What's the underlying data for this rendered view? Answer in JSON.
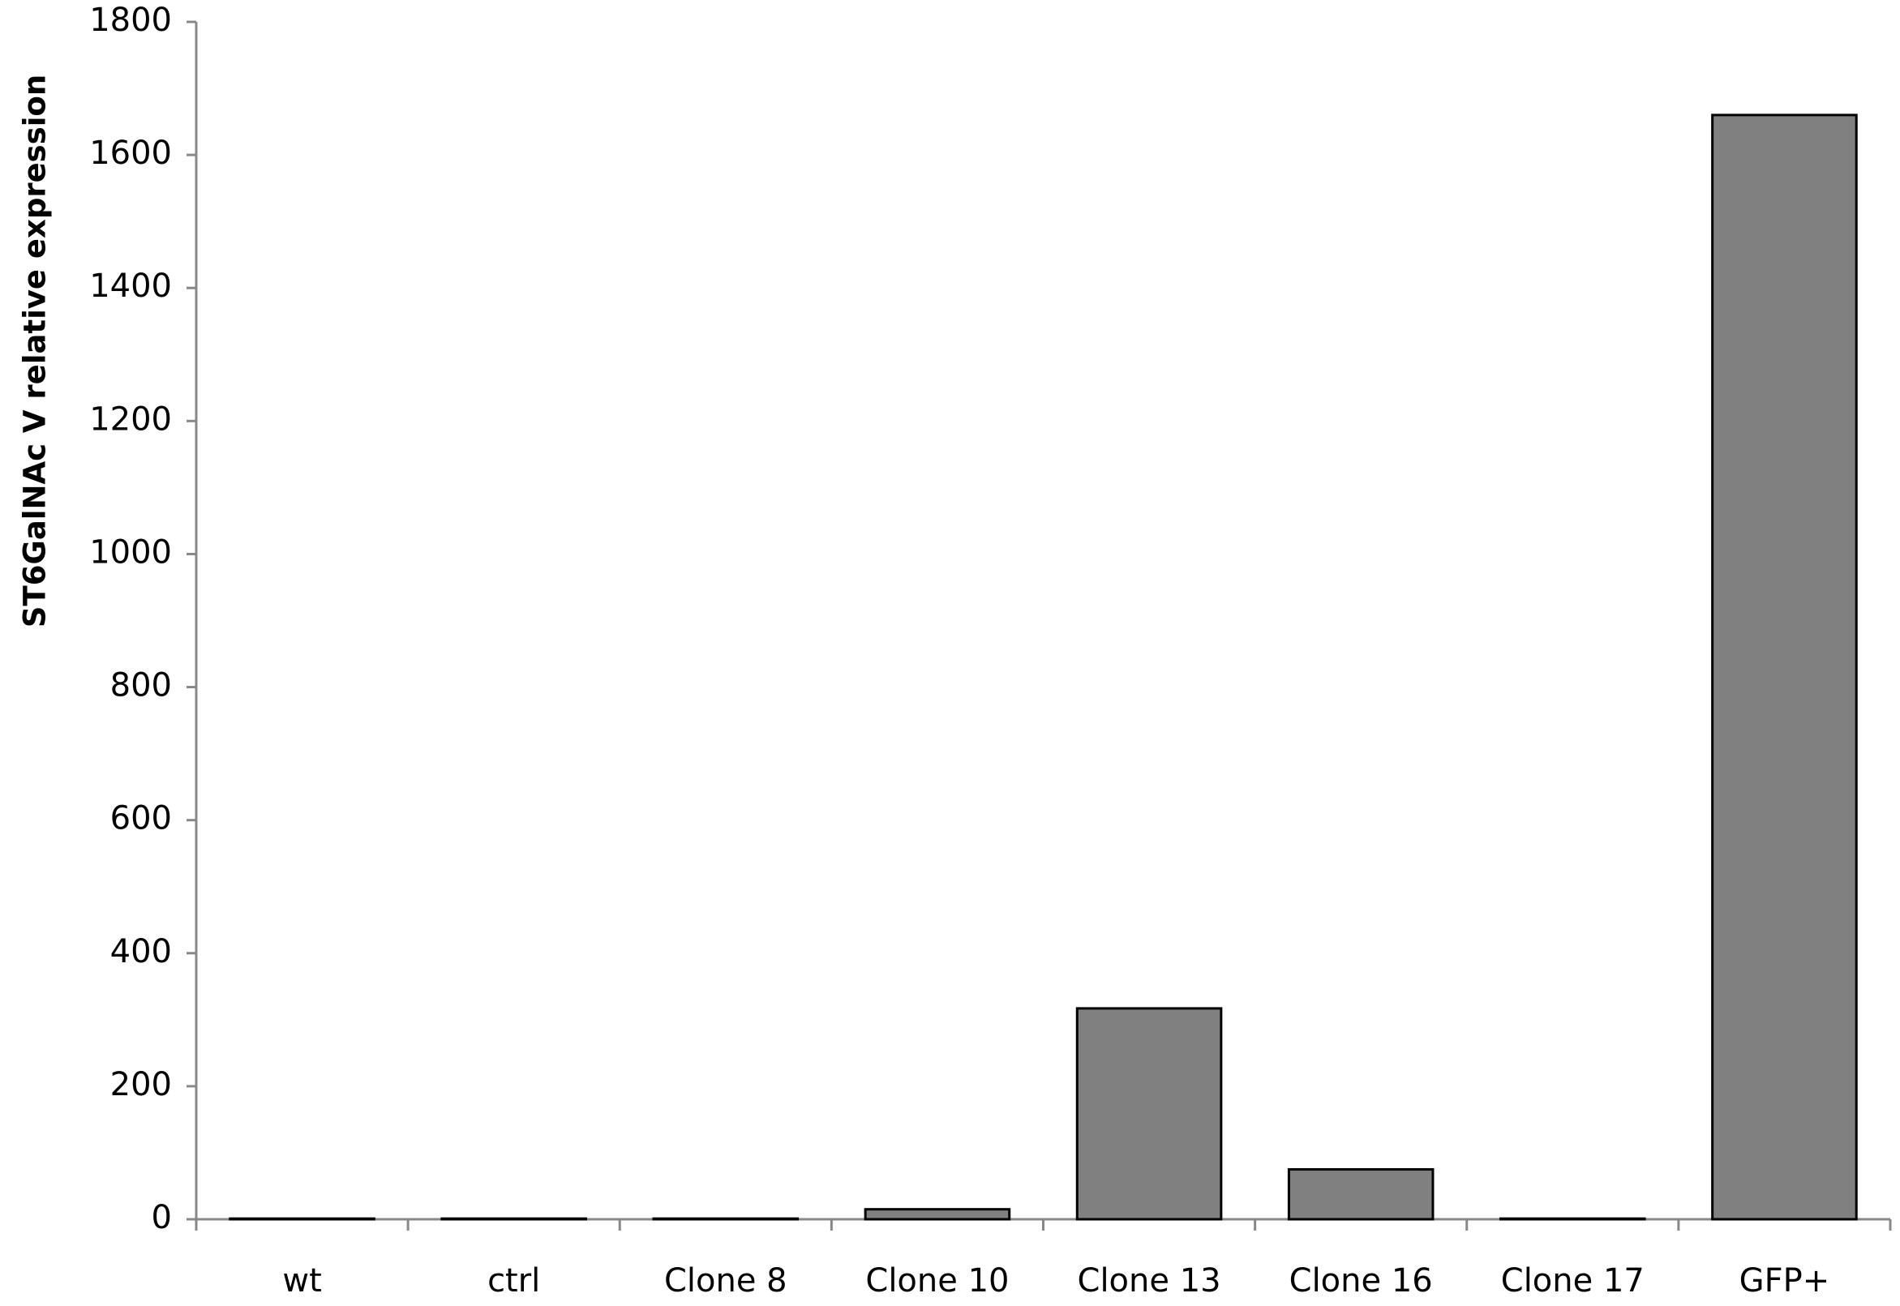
{
  "chart_data": {
    "type": "bar",
    "y_label": "ST6GalNAc V relative expression",
    "categories": [
      "wt",
      "ctrl",
      "Clone 8",
      "Clone 10",
      "Clone 13",
      "Clone 16",
      "Clone 17",
      "GFP+"
    ],
    "values": [
      1,
      1,
      1,
      15,
      317,
      75,
      1,
      1660
    ],
    "color": "#808080",
    "ylim": [
      0,
      1800
    ],
    "yticks": [
      0,
      200,
      400,
      600,
      800,
      1000,
      1200,
      1400,
      1600,
      1800
    ],
    "grid": false
  }
}
